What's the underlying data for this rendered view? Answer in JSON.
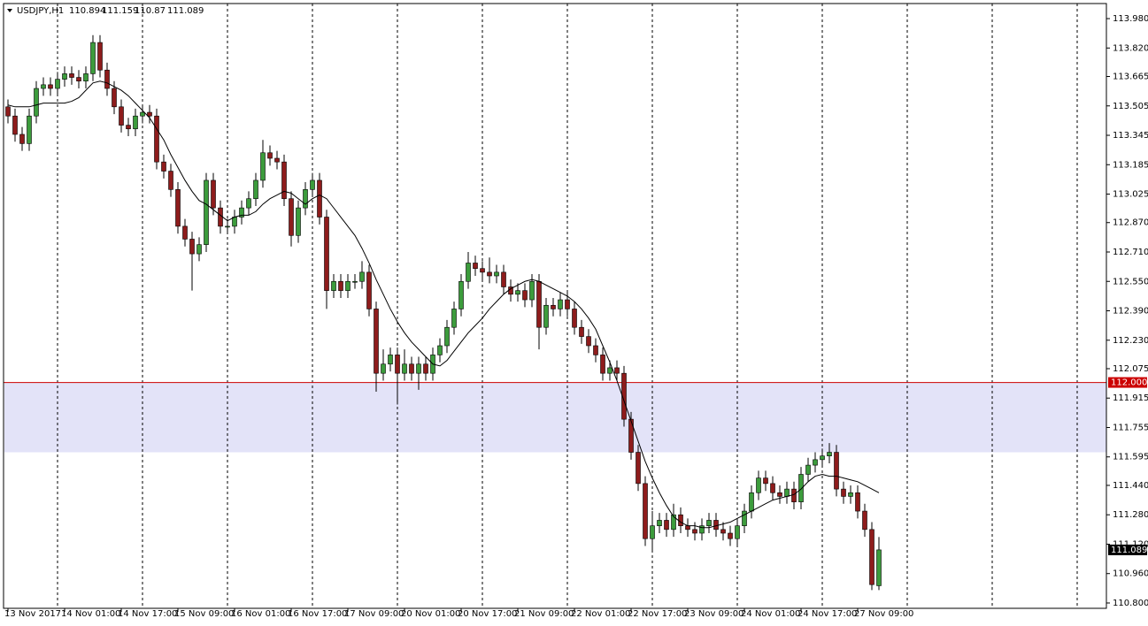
{
  "chart_data": {
    "type": "candlestick",
    "symbol": "USDJPY,H1",
    "up_color": "#3c9c3c",
    "down_color": "#8e1c1c",
    "categories": [
      "13 Nov 2017",
      null,
      null,
      null,
      null,
      null,
      null,
      null,
      "14 Nov 01:00",
      null,
      null,
      null,
      null,
      null,
      null,
      null,
      "14 Nov 17:00",
      null,
      null,
      null,
      null,
      null,
      null,
      null,
      "15 Nov 09:00",
      null,
      null,
      null,
      null,
      null,
      null,
      null,
      "16 Nov 01:00",
      null,
      null,
      null,
      null,
      null,
      null,
      null,
      "16 Nov 17:00",
      null,
      null,
      null,
      null,
      null,
      null,
      null,
      "17 Nov 09:00",
      null,
      null,
      null,
      null,
      null,
      null,
      null,
      "20 Nov 01:00",
      null,
      null,
      null,
      null,
      null,
      null,
      null,
      "20 Nov 17:00",
      null,
      null,
      null,
      null,
      null,
      null,
      null,
      "21 Nov 09:00",
      null,
      null,
      null,
      null,
      null,
      null,
      null,
      "22 Nov 01:00",
      null,
      null,
      null,
      null,
      null,
      null,
      null,
      "22 Nov 17:00",
      null,
      null,
      null,
      null,
      null,
      null,
      null,
      "23 Nov 09:00",
      null,
      null,
      null,
      null,
      null,
      null,
      null,
      "24 Nov 01:00",
      null,
      null,
      null,
      null,
      null,
      null,
      null,
      "24 Nov 17:00",
      null,
      null,
      null,
      null,
      null,
      null,
      null,
      "27 Nov 09:00",
      null,
      null,
      null
    ],
    "open": [
      113.5,
      113.45,
      113.35,
      113.3,
      113.45,
      113.6,
      113.62,
      113.6,
      113.65,
      113.68,
      113.66,
      113.64,
      113.68,
      113.85,
      113.7,
      113.6,
      113.5,
      113.4,
      113.38,
      113.45,
      113.47,
      113.45,
      113.2,
      113.15,
      113.05,
      112.85,
      112.78,
      112.7,
      112.75,
      113.1,
      112.95,
      112.85,
      112.85,
      112.9,
      112.95,
      113.0,
      113.1,
      113.25,
      113.22,
      113.2,
      113.0,
      112.8,
      112.95,
      113.05,
      113.1,
      112.9,
      112.5,
      112.55,
      112.5,
      112.55,
      112.55,
      112.6,
      112.4,
      112.05,
      112.1,
      112.15,
      112.05,
      112.1,
      112.05,
      112.1,
      112.05,
      112.15,
      112.2,
      112.3,
      112.4,
      112.55,
      112.65,
      112.62,
      112.6,
      112.58,
      112.6,
      112.52,
      112.48,
      112.5,
      112.45,
      112.55,
      112.3,
      112.42,
      112.4,
      112.45,
      112.4,
      112.3,
      112.25,
      112.2,
      112.15,
      112.05,
      112.08,
      112.05,
      111.8,
      111.62,
      111.45,
      111.15,
      111.22,
      111.25,
      111.2,
      111.28,
      111.22,
      111.2,
      111.18,
      111.22,
      111.25,
      111.2,
      111.18,
      111.15,
      111.22,
      111.3,
      111.4,
      111.48,
      111.45,
      111.4,
      111.38,
      111.42,
      111.35,
      111.5,
      111.55,
      111.58,
      111.6,
      111.62,
      111.42,
      111.38,
      111.4,
      111.3,
      111.2,
      110.894
    ],
    "high": [
      113.54,
      113.49,
      113.39,
      113.49,
      113.64,
      113.66,
      113.66,
      113.69,
      113.72,
      113.72,
      113.7,
      113.72,
      113.89,
      113.89,
      113.74,
      113.64,
      113.54,
      113.44,
      113.49,
      113.51,
      113.51,
      113.49,
      113.24,
      113.19,
      113.09,
      112.89,
      112.82,
      112.79,
      113.14,
      113.14,
      112.99,
      112.89,
      112.94,
      112.99,
      113.04,
      113.14,
      113.32,
      113.29,
      113.26,
      113.24,
      113.04,
      112.99,
      113.09,
      113.14,
      113.14,
      112.94,
      112.59,
      112.59,
      112.59,
      112.59,
      112.66,
      112.64,
      112.44,
      112.18,
      112.19,
      112.19,
      112.18,
      112.14,
      112.14,
      112.14,
      112.19,
      112.24,
      112.34,
      112.44,
      112.59,
      112.71,
      112.69,
      112.66,
      112.68,
      112.64,
      112.64,
      112.56,
      112.54,
      112.54,
      112.59,
      112.59,
      112.46,
      112.46,
      112.49,
      112.49,
      112.44,
      112.34,
      112.29,
      112.24,
      112.19,
      112.12,
      112.12,
      112.09,
      111.84,
      111.66,
      111.49,
      111.3,
      111.29,
      111.29,
      111.34,
      111.32,
      111.26,
      111.24,
      111.26,
      111.29,
      111.29,
      111.24,
      111.22,
      111.26,
      111.34,
      111.44,
      111.52,
      111.52,
      111.49,
      111.44,
      111.46,
      111.46,
      111.54,
      111.59,
      111.62,
      111.64,
      111.67,
      111.66,
      111.46,
      111.44,
      111.44,
      111.34,
      111.24,
      111.159
    ],
    "low": [
      113.41,
      113.31,
      113.26,
      113.26,
      113.41,
      113.56,
      113.56,
      113.56,
      113.61,
      113.62,
      113.6,
      113.6,
      113.64,
      113.66,
      113.56,
      113.46,
      113.36,
      113.34,
      113.34,
      113.41,
      113.41,
      113.16,
      113.11,
      113.01,
      112.81,
      112.74,
      112.5,
      112.66,
      112.71,
      112.91,
      112.81,
      112.81,
      112.81,
      112.86,
      112.91,
      112.96,
      113.06,
      113.18,
      113.16,
      112.96,
      112.74,
      112.76,
      112.91,
      113.01,
      112.86,
      112.4,
      112.46,
      112.46,
      112.46,
      112.51,
      112.51,
      112.36,
      111.95,
      112.01,
      112.06,
      111.88,
      112.01,
      112.01,
      111.96,
      112.01,
      112.01,
      112.11,
      112.16,
      112.26,
      112.36,
      112.51,
      112.58,
      112.56,
      112.54,
      112.54,
      112.48,
      112.44,
      112.44,
      112.41,
      112.41,
      112.18,
      112.26,
      112.36,
      112.36,
      112.36,
      112.26,
      112.21,
      112.16,
      112.11,
      112.01,
      112.01,
      112.01,
      111.76,
      111.58,
      111.41,
      111.11,
      111.08,
      111.18,
      111.16,
      111.16,
      111.18,
      111.16,
      111.14,
      111.14,
      111.18,
      111.16,
      111.14,
      111.11,
      111.11,
      111.18,
      111.26,
      111.36,
      111.41,
      111.36,
      111.34,
      111.34,
      111.31,
      111.31,
      111.46,
      111.51,
      111.54,
      111.56,
      111.38,
      111.34,
      111.34,
      111.26,
      111.16,
      110.87,
      110.87
    ],
    "close": [
      113.45,
      113.35,
      113.3,
      113.45,
      113.6,
      113.62,
      113.6,
      113.65,
      113.68,
      113.66,
      113.64,
      113.68,
      113.85,
      113.7,
      113.6,
      113.5,
      113.4,
      113.38,
      113.45,
      113.47,
      113.45,
      113.2,
      113.15,
      113.05,
      112.85,
      112.78,
      112.7,
      112.75,
      113.1,
      112.95,
      112.85,
      112.85,
      112.9,
      112.95,
      113.0,
      113.1,
      113.25,
      113.22,
      113.2,
      113.0,
      112.8,
      112.95,
      113.05,
      113.1,
      112.9,
      112.5,
      112.55,
      112.5,
      112.55,
      112.55,
      112.6,
      112.4,
      112.05,
      112.1,
      112.15,
      112.05,
      112.1,
      112.05,
      112.1,
      112.05,
      112.15,
      112.2,
      112.3,
      112.4,
      112.55,
      112.65,
      112.62,
      112.6,
      112.58,
      112.6,
      112.52,
      112.48,
      112.5,
      112.45,
      112.55,
      112.3,
      112.42,
      112.4,
      112.45,
      112.4,
      112.3,
      112.25,
      112.2,
      112.15,
      112.05,
      112.08,
      112.05,
      111.8,
      111.62,
      111.45,
      111.15,
      111.22,
      111.25,
      111.2,
      111.28,
      111.22,
      111.2,
      111.18,
      111.22,
      111.25,
      111.2,
      111.18,
      111.15,
      111.22,
      111.3,
      111.4,
      111.48,
      111.45,
      111.4,
      111.38,
      111.42,
      111.35,
      111.5,
      111.55,
      111.58,
      111.6,
      111.62,
      111.42,
      111.38,
      111.4,
      111.3,
      111.2,
      110.9,
      111.089
    ],
    "moving_average": {
      "color": "#000000",
      "values": [
        113.51,
        113.5,
        113.5,
        113.5,
        113.51,
        113.52,
        113.52,
        113.52,
        113.52,
        113.53,
        113.55,
        113.59,
        113.63,
        113.64,
        113.63,
        113.61,
        113.59,
        113.56,
        113.52,
        113.48,
        113.44,
        113.38,
        113.32,
        113.24,
        113.17,
        113.1,
        113.04,
        112.99,
        112.97,
        112.94,
        112.91,
        112.88,
        112.9,
        112.91,
        112.91,
        112.93,
        112.97,
        113.0,
        113.02,
        113.04,
        113.03,
        113.0,
        112.97,
        113.0,
        113.02,
        113.0,
        112.95,
        112.9,
        112.85,
        112.8,
        112.73,
        112.65,
        112.56,
        112.48,
        112.4,
        112.33,
        112.27,
        112.22,
        112.18,
        112.14,
        112.1,
        112.09,
        112.12,
        112.17,
        112.22,
        112.27,
        112.31,
        112.35,
        112.4,
        112.44,
        112.48,
        112.51,
        112.53,
        112.55,
        112.56,
        112.55,
        112.53,
        112.51,
        112.49,
        112.47,
        112.44,
        112.4,
        112.35,
        112.29,
        112.2,
        112.11,
        112.01,
        111.9,
        111.79,
        111.68,
        111.57,
        111.48,
        111.4,
        111.33,
        111.27,
        111.24,
        111.22,
        111.22,
        111.21,
        111.21,
        111.22,
        111.23,
        111.24,
        111.26,
        111.28,
        111.3,
        111.32,
        111.34,
        111.36,
        111.37,
        111.38,
        111.39,
        111.42,
        111.46,
        111.49,
        111.5,
        111.49,
        111.49,
        111.48,
        111.47,
        111.46,
        111.44,
        111.42,
        111.4
      ]
    },
    "level": {
      "value": 112,
      "label": "112.000",
      "color": "#cc0000"
    },
    "zone": {
      "from": 111.62,
      "to": 112,
      "color": "#e3e3f8"
    },
    "ylim": [
      110.771,
      114.062
    ],
    "yticks": [
      {
        "value": 113.98,
        "label": "113.980"
      },
      {
        "value": 113.82,
        "label": "113.820"
      },
      113.665,
      113.505,
      113.345,
      113.185,
      113.025,
      {
        "value": 112.87,
        "label": "112.870"
      },
      {
        "value": 112.71,
        "label": "112.710"
      },
      {
        "value": 112.55,
        "label": "112.550"
      },
      {
        "value": 112.39,
        "label": "112.390"
      },
      {
        "value": 112.23,
        "label": "112.230"
      },
      112.075,
      111.915,
      111.755,
      111.595,
      {
        "value": 111.44,
        "label": "111.440"
      },
      {
        "value": 111.28,
        "label": "111.280"
      },
      {
        "value": 111.12,
        "label": "111.120"
      },
      {
        "value": 110.96,
        "label": "110.960"
      },
      {
        "value": 110.8,
        "label": "110.800"
      }
    ]
  }
}
